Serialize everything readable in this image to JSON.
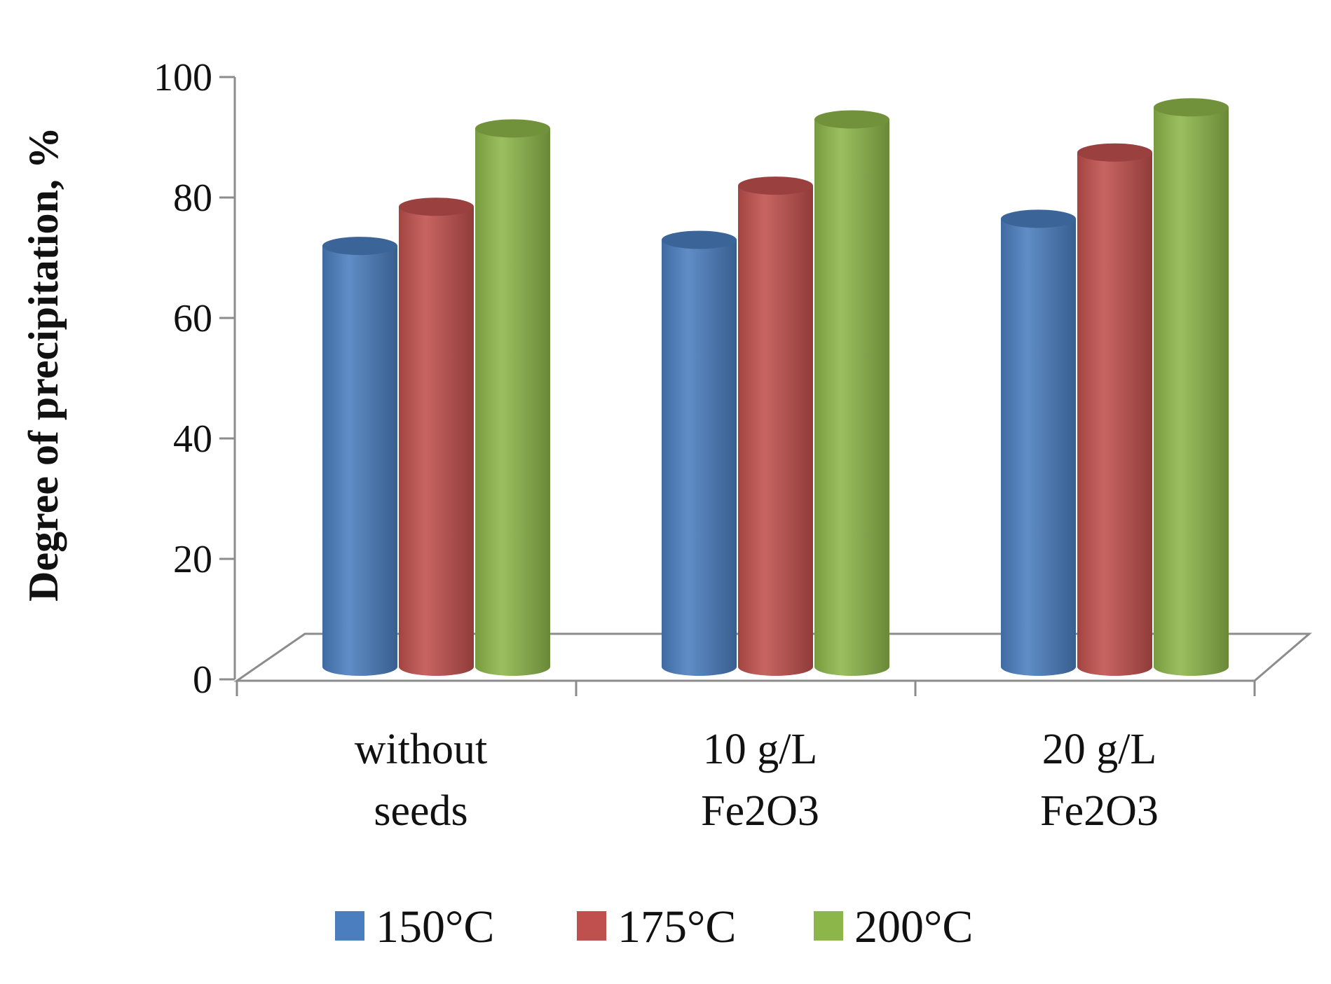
{
  "chart_data": {
    "type": "bar",
    "style": "3d-cylinder",
    "title": "",
    "xlabel": "",
    "ylabel": "Degree of precipitation,  %",
    "ylim": [
      0,
      100
    ],
    "yticks": [
      "0",
      "20",
      "40",
      "60",
      "80",
      "100"
    ],
    "categories": [
      [
        "without",
        "seeds"
      ],
      [
        "10 g/L",
        "Fe2O3"
      ],
      [
        "20 g/L",
        "Fe2O3"
      ]
    ],
    "series": [
      {
        "name": "150°C",
        "color": "#4a7ebf",
        "values": [
          71.5,
          72.5,
          76
        ]
      },
      {
        "name": "175°C",
        "color": "#c0504d",
        "values": [
          78,
          81.5,
          87
        ]
      },
      {
        "name": "200°C",
        "color": "#8db64a",
        "values": [
          91,
          92.5,
          94.5
        ]
      }
    ],
    "legend_position": "bottom"
  }
}
